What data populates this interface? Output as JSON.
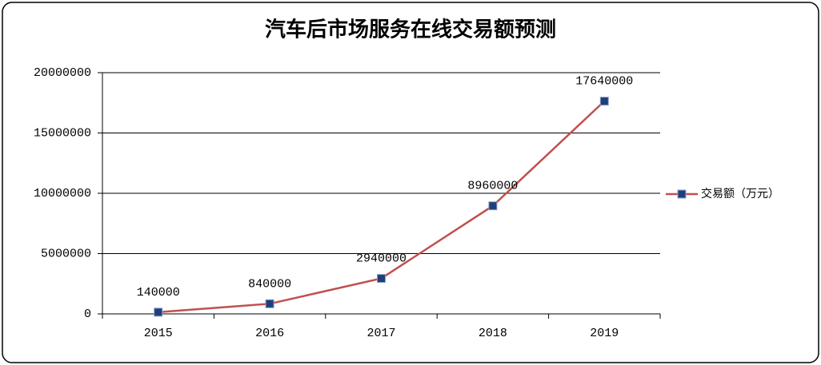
{
  "chart_data": {
    "type": "line",
    "title": "汽车后市场服务在线交易额预测",
    "categories": [
      "2015",
      "2016",
      "2017",
      "2018",
      "2019"
    ],
    "series": [
      {
        "name": "交易额（万元）",
        "color": "#c0504d",
        "marker_color": "#1f3f7a",
        "values": [
          140000,
          840000,
          2940000,
          8960000,
          17640000
        ]
      }
    ],
    "ylim": [
      0,
      20000000
    ],
    "yticks": [
      0,
      5000000,
      10000000,
      15000000,
      20000000
    ],
    "grid": true,
    "legend": "right"
  }
}
